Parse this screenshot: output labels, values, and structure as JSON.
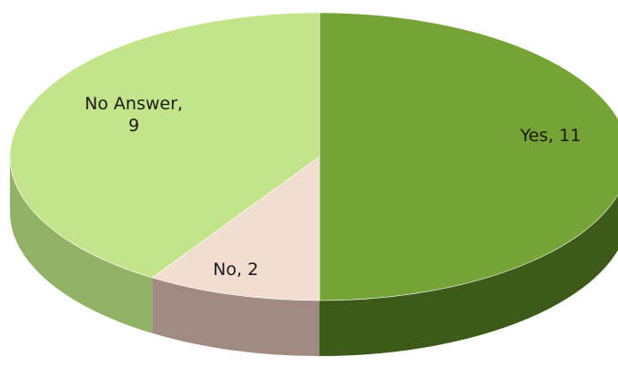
{
  "chart_data": {
    "type": "pie",
    "style": "3d",
    "title": "",
    "categories": [
      "Yes",
      "No",
      "No Answer"
    ],
    "values": [
      11,
      2,
      9
    ],
    "labels": [
      {
        "lines": [
          "Yes, 11"
        ]
      },
      {
        "lines": [
          "No, 2"
        ]
      },
      {
        "lines": [
          "No Answer,",
          "9"
        ]
      }
    ],
    "colors": {
      "top": [
        "#76a336",
        "#f3ddd1",
        "#c4e48c"
      ],
      "side": [
        "#3e5a1a",
        "#a08a82",
        "#92b266"
      ]
    },
    "legend": "none"
  }
}
